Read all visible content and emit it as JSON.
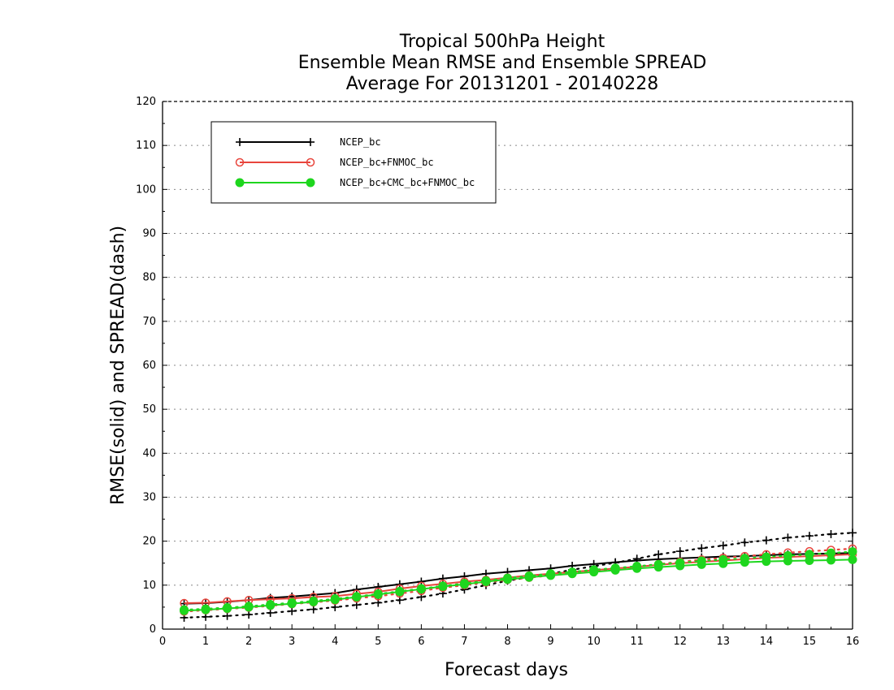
{
  "chart_data": {
    "type": "line",
    "title_lines": [
      "Tropical 500hPa Height",
      "Ensemble Mean RMSE and Ensemble SPREAD",
      "Average For 20131201 - 20140228"
    ],
    "xlabel": "Forecast days",
    "ylabel": "RMSE(solid) and SPREAD(dash)",
    "xlim": [
      0,
      16
    ],
    "ylim": [
      0,
      120
    ],
    "x_ticks": [
      0,
      1,
      2,
      3,
      4,
      5,
      6,
      7,
      8,
      9,
      10,
      11,
      12,
      13,
      14,
      15,
      16
    ],
    "y_ticks": [
      0,
      10,
      20,
      30,
      40,
      50,
      60,
      70,
      80,
      90,
      100,
      110,
      120
    ],
    "grid": "horizontal-dotted",
    "legend_position": "top-left",
    "x": [
      0.5,
      1,
      1.5,
      2,
      2.5,
      3,
      3.5,
      4,
      4.5,
      5,
      5.5,
      6,
      6.5,
      7,
      7.5,
      8,
      8.5,
      9,
      9.5,
      10,
      10.5,
      11,
      11.5,
      12,
      12.5,
      13,
      13.5,
      14,
      14.5,
      15,
      15.5,
      16
    ],
    "series": [
      {
        "name": "NCEP_bc",
        "color": "#000000",
        "marker": "plus",
        "rmse": [
          5.8,
          5.9,
          6.2,
          6.6,
          7.1,
          7.4,
          7.8,
          8.2,
          9.0,
          9.6,
          10.2,
          10.8,
          11.5,
          12.0,
          12.6,
          13.0,
          13.4,
          13.8,
          14.4,
          14.8,
          15.2,
          15.6,
          15.9,
          16.1,
          16.3,
          16.5,
          16.6,
          16.8,
          17.0,
          17.1,
          17.2,
          17.3
        ],
        "spread": [
          2.6,
          2.8,
          3.0,
          3.3,
          3.7,
          4.1,
          4.5,
          5.0,
          5.5,
          6.0,
          6.6,
          7.3,
          8.1,
          9.0,
          10.0,
          11.0,
          11.8,
          12.6,
          13.5,
          14.3,
          15.1,
          16.0,
          17.0,
          17.7,
          18.4,
          19.0,
          19.7,
          20.2,
          20.8,
          21.2,
          21.6,
          21.9
        ]
      },
      {
        "name": "NCEP_bc+FNMOC_bc",
        "color": "#e8453c",
        "marker": "open-circle",
        "rmse": [
          5.9,
          6.0,
          6.3,
          6.6,
          6.8,
          7.0,
          7.3,
          7.5,
          8.0,
          8.5,
          9.2,
          9.8,
          10.3,
          10.8,
          11.2,
          11.7,
          12.2,
          12.6,
          13.0,
          13.4,
          13.8,
          14.2,
          14.6,
          15.0,
          15.3,
          15.6,
          15.9,
          16.2,
          16.4,
          16.6,
          16.8,
          17.0
        ],
        "spread": [
          4.0,
          4.3,
          4.6,
          4.9,
          5.3,
          5.7,
          6.1,
          6.5,
          7.0,
          7.5,
          8.1,
          8.7,
          9.4,
          10.0,
          10.6,
          11.2,
          11.7,
          12.2,
          12.7,
          13.2,
          13.7,
          14.2,
          14.8,
          15.3,
          15.8,
          16.2,
          16.6,
          17.0,
          17.4,
          17.7,
          18.0,
          18.3
        ]
      },
      {
        "name": "NCEP_bc+CMC_bc+FNMOC_bc",
        "color": "#1ed61e",
        "marker": "filled-circle",
        "rmse": [
          4.2,
          4.4,
          4.7,
          5.0,
          5.4,
          5.8,
          6.2,
          6.7,
          7.3,
          7.9,
          8.5,
          9.1,
          9.7,
          10.2,
          10.8,
          11.3,
          11.8,
          12.2,
          12.6,
          13.0,
          13.4,
          13.8,
          14.1,
          14.4,
          14.7,
          14.9,
          15.2,
          15.4,
          15.5,
          15.6,
          15.7,
          15.8
        ],
        "spread": [
          4.4,
          4.6,
          4.9,
          5.2,
          5.6,
          6.0,
          6.4,
          6.9,
          7.4,
          8.0,
          8.6,
          9.2,
          9.8,
          10.4,
          11.0,
          11.6,
          12.1,
          12.6,
          13.0,
          13.5,
          13.9,
          14.3,
          14.7,
          15.1,
          15.5,
          15.8,
          16.1,
          16.4,
          16.7,
          17.0,
          17.3,
          17.6
        ]
      }
    ]
  }
}
